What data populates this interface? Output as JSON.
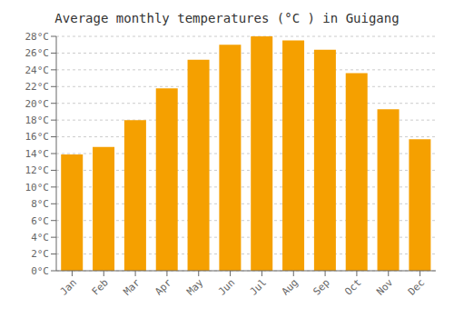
{
  "chart_data": {
    "type": "bar",
    "title": "Average monthly temperatures (°C ) in Guigang",
    "categories": [
      "Jan",
      "Feb",
      "Mar",
      "Apr",
      "May",
      "Jun",
      "Jul",
      "Aug",
      "Sep",
      "Oct",
      "Nov",
      "Dec"
    ],
    "values": [
      13.9,
      14.8,
      18.0,
      21.8,
      25.2,
      27.0,
      28.0,
      27.5,
      26.4,
      23.6,
      19.3,
      15.7
    ],
    "color": "#F5A000",
    "ylim": [
      0,
      28
    ],
    "yticks": [
      {
        "value": 0,
        "label": "0°C"
      },
      {
        "value": 2,
        "label": "2°C"
      },
      {
        "value": 4,
        "label": "4°C"
      },
      {
        "value": 6,
        "label": "6°C"
      },
      {
        "value": 8,
        "label": "8°C"
      },
      {
        "value": 10,
        "label": "10°C"
      },
      {
        "value": 12,
        "label": "12°C"
      },
      {
        "value": 14,
        "label": "14°C"
      },
      {
        "value": 16,
        "label": "16°C"
      },
      {
        "value": 18,
        "label": "18°C"
      },
      {
        "value": 20,
        "label": "20°C"
      },
      {
        "value": 22,
        "label": "22°C"
      },
      {
        "value": 24,
        "label": "24°C"
      },
      {
        "value": 26,
        "label": "26°C"
      },
      {
        "value": 28,
        "label": "28°C"
      }
    ],
    "grid": true
  }
}
